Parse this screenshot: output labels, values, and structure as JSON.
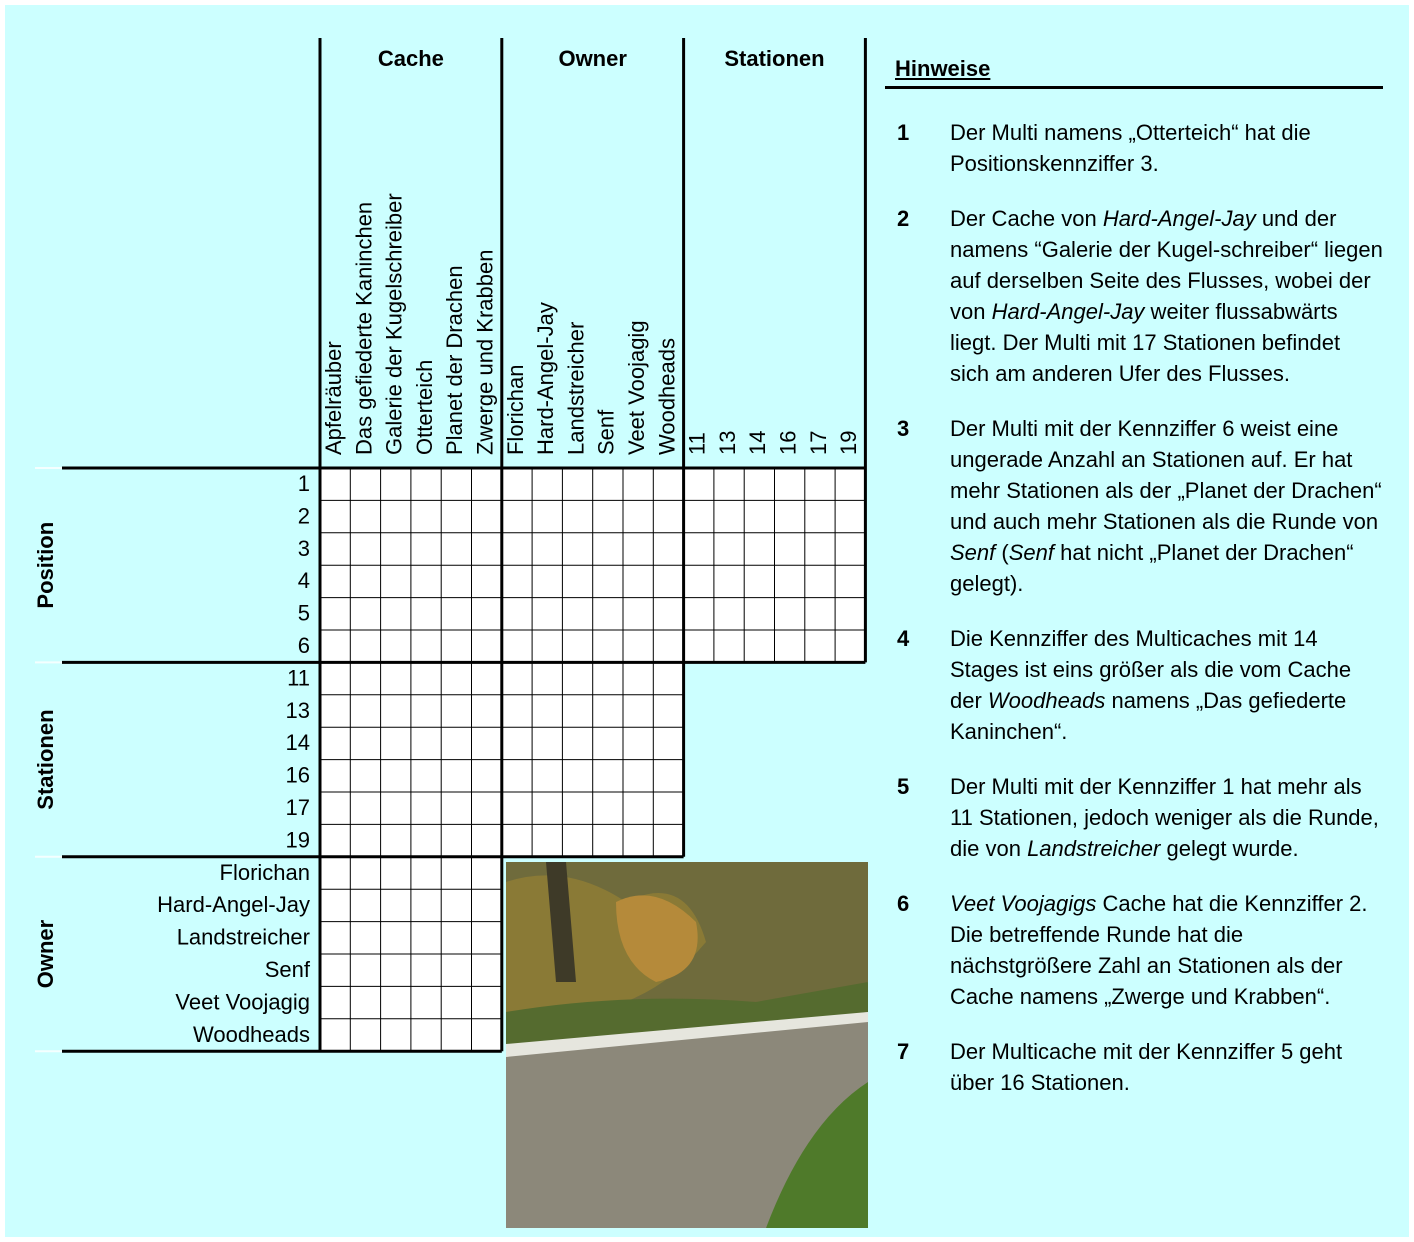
{
  "column_groups": [
    {
      "title": "Cache",
      "items": [
        "Apfelräuber",
        "Das gefiederte Kaninchen",
        "Galerie der Kugelschreiber",
        "Otterteich",
        "Planet der Drachen",
        "Zwerge und Krabben"
      ]
    },
    {
      "title": "Owner",
      "items": [
        "Florichan",
        "Hard-Angel-Jay",
        "Landstreicher",
        "Senf",
        "Veet Voojagig",
        "Woodheads"
      ]
    },
    {
      "title": "Stationen",
      "items": [
        "11",
        "13",
        "14",
        "16",
        "17",
        "19"
      ]
    }
  ],
  "row_groups": [
    {
      "title": "Position",
      "items": [
        "1",
        "2",
        "3",
        "4",
        "5",
        "6"
      ]
    },
    {
      "title": "Stationen",
      "items": [
        "11",
        "13",
        "14",
        "16",
        "17",
        "19"
      ]
    },
    {
      "title": "Owner",
      "items": [
        "Florichan",
        "Hard-Angel-Jay",
        "Landstreicher",
        "Senf",
        "Veet Voojagig",
        "Woodheads"
      ]
    }
  ],
  "hints": {
    "title": "Hinweise",
    "items": [
      {
        "number": "1",
        "parts": [
          {
            "text": "Der Multi namens „Otterteich“ hat die Positionskennziffer 3."
          }
        ]
      },
      {
        "number": "2",
        "parts": [
          {
            "text": "Der Cache von "
          },
          {
            "text": "Hard-Angel-Jay",
            "em": true
          },
          {
            "text": " und der namens “Galerie der Kugel-schreiber“ liegen auf derselben Seite des Flusses, wobei der von "
          },
          {
            "text": "Hard-Angel-Jay",
            "em": true
          },
          {
            "text": " weiter flussabwärts liegt. Der Multi mit 17 Stationen befindet sich am anderen Ufer des Flusses."
          }
        ]
      },
      {
        "number": "3",
        "parts": [
          {
            "text": "Der Multi mit der Kennziffer 6 weist eine ungerade Anzahl an Stationen auf. Er hat mehr Stationen als der „Planet der Drachen“ und auch mehr Stationen als die Runde von "
          },
          {
            "text": "Senf",
            "em": true
          },
          {
            "text": " ("
          },
          {
            "text": "Senf",
            "em": true
          },
          {
            "text": " hat nicht „Planet der Drachen“ gelegt)."
          }
        ]
      },
      {
        "number": "4",
        "parts": [
          {
            "text": "Die Kennziffer des Multicaches mit 14 Stages ist eins größer als die vom Cache der "
          },
          {
            "text": "Woodheads",
            "em": true
          },
          {
            "text": " namens „Das gefiederte Kaninchen“."
          }
        ]
      },
      {
        "number": "5",
        "parts": [
          {
            "text": "Der Multi mit der Kennziffer 1 hat mehr als 11 Stationen, jedoch weniger als die Runde, die von "
          },
          {
            "text": "Landstreicher",
            "em": true
          },
          {
            "text": " gelegt wurde."
          }
        ]
      },
      {
        "number": "6",
        "parts": [
          {
            "text": "Veet Voojagigs",
            "em": true
          },
          {
            "text": " Cache hat die Kennziffer 2. Die betreffende Runde hat die nächstgrößere Zahl an Stationen als der Cache namens „Zwerge und Krabben“."
          }
        ]
      },
      {
        "number": "7",
        "parts": [
          {
            "text": "Der Multicache mit der Kennziffer 5 geht über 16 Stationen."
          }
        ]
      }
    ]
  }
}
